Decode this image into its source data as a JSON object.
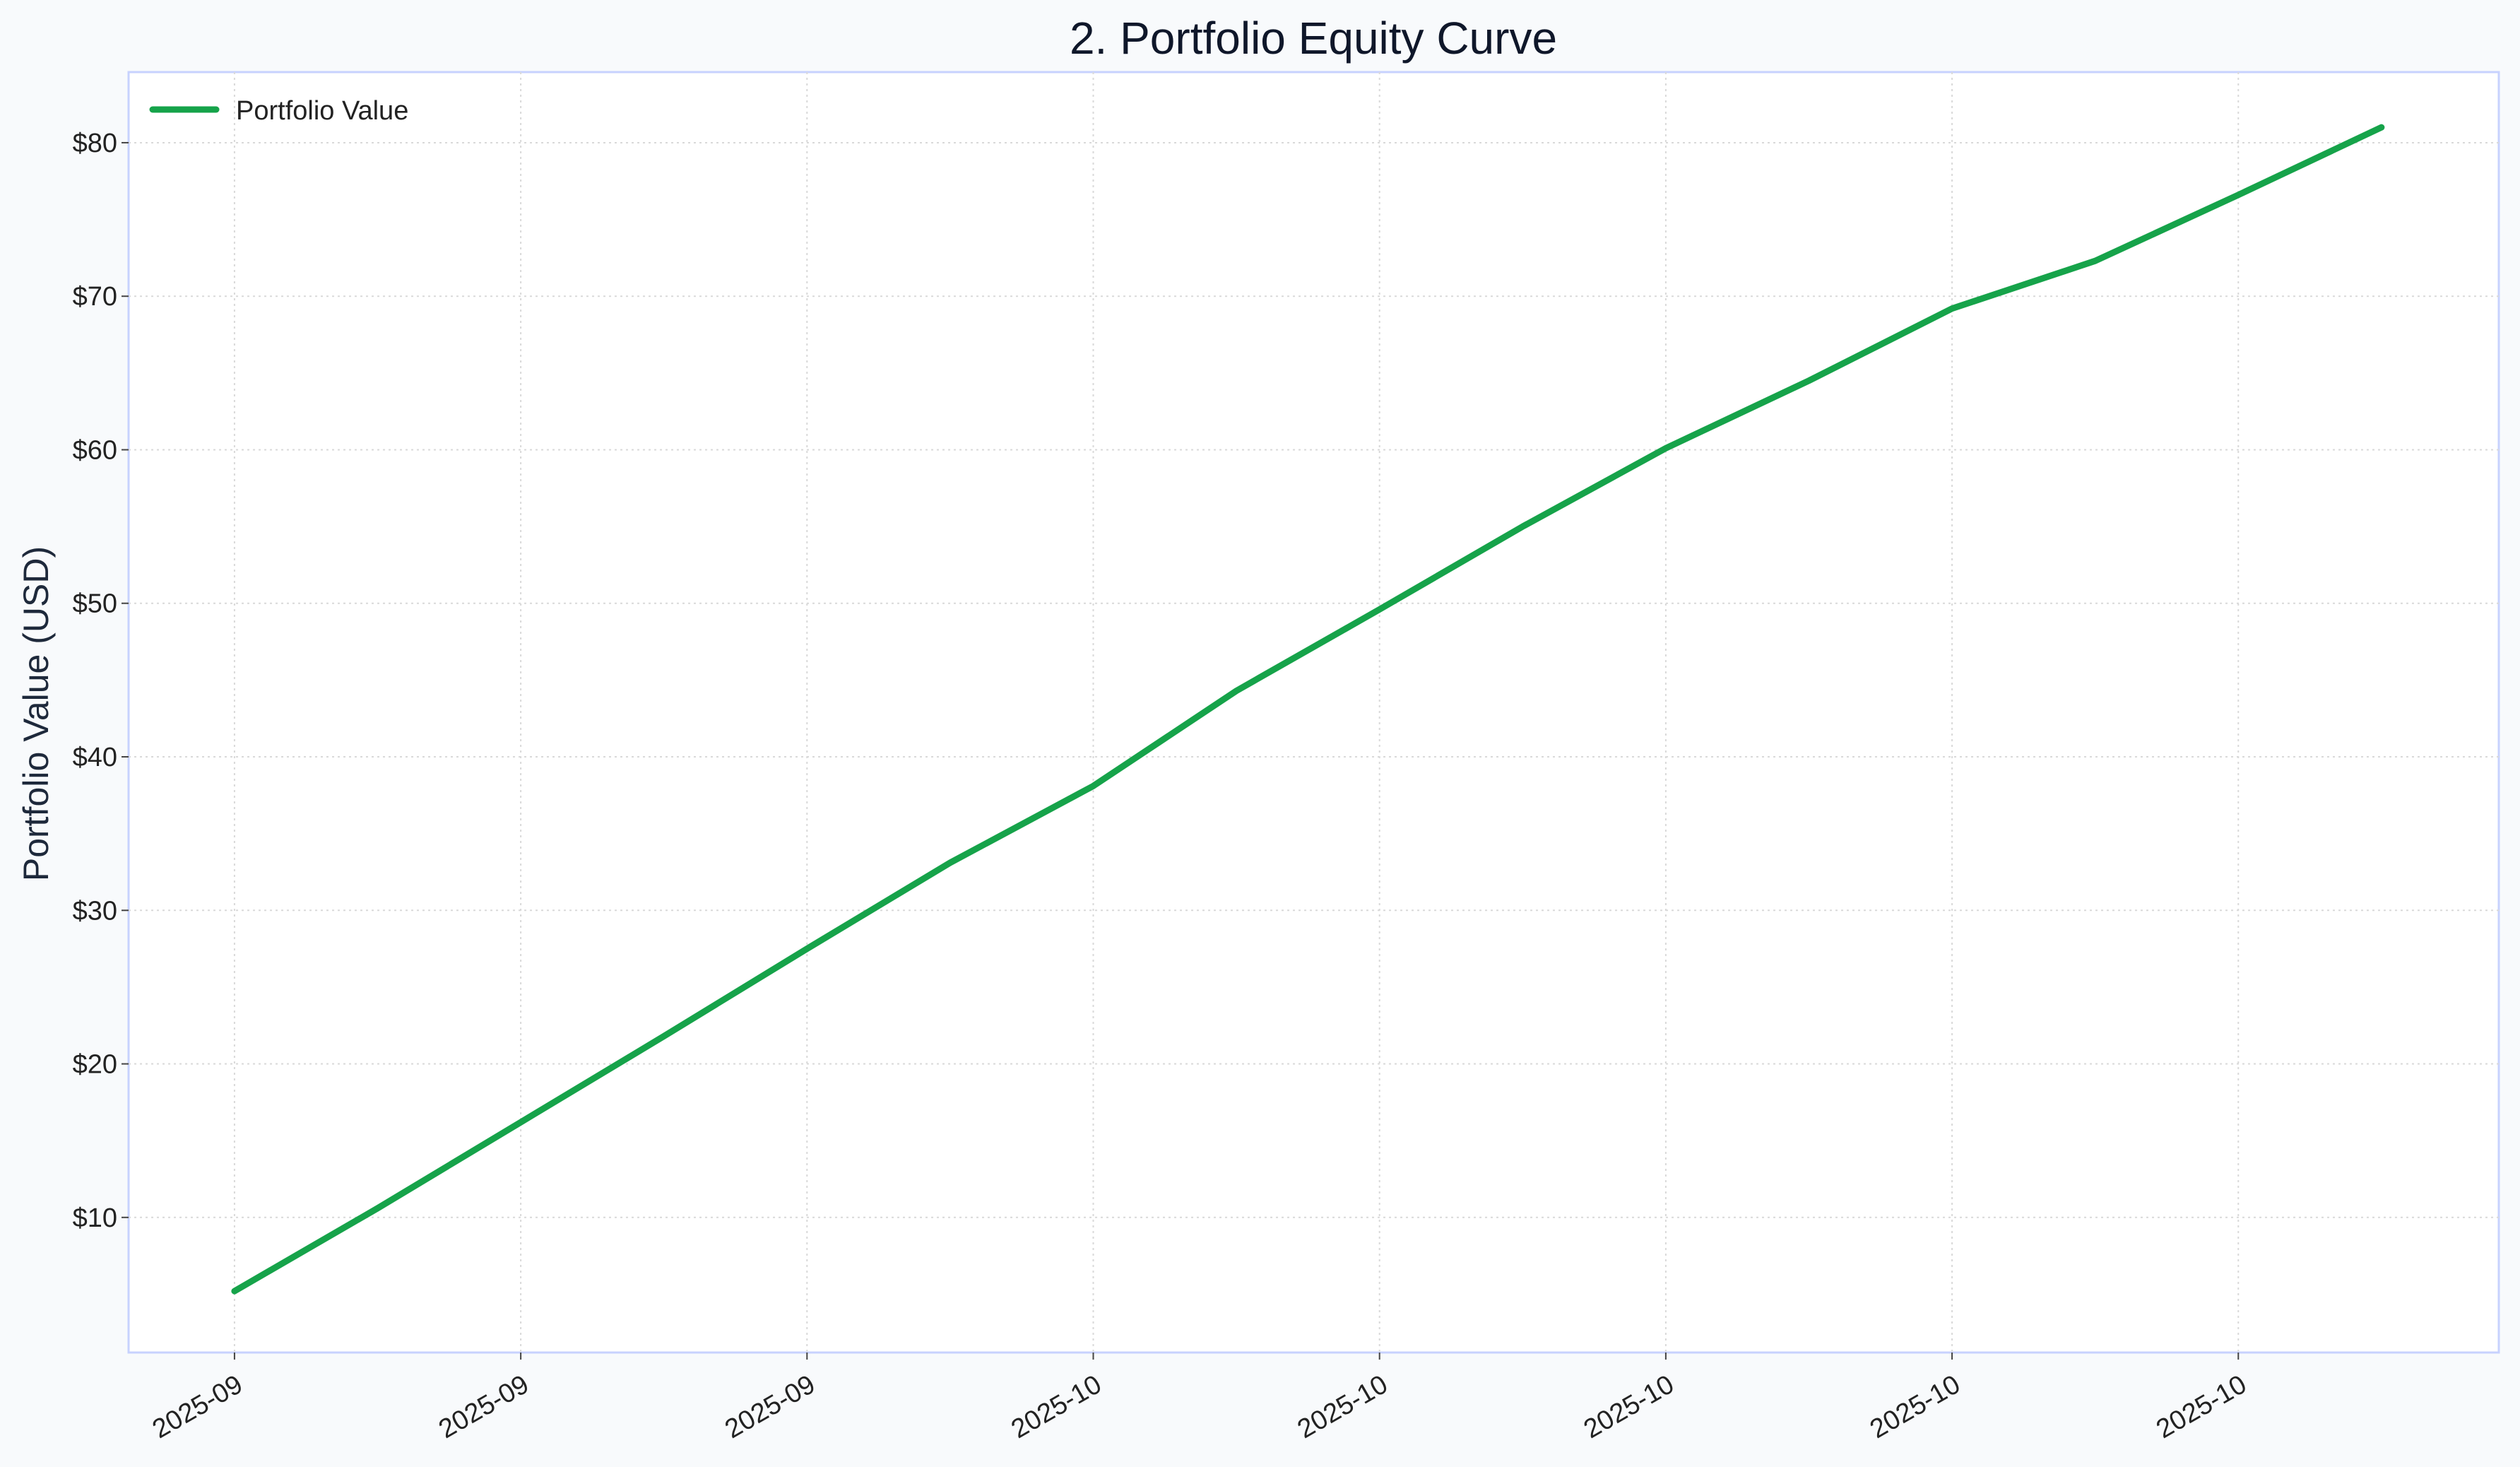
{
  "chart_data": {
    "type": "line",
    "title": "2. Portfolio Equity Curve",
    "xlabel": "",
    "ylabel": "Portfolio Value (USD)",
    "x_tick_labels": [
      "2025-09",
      "2025-09",
      "2025-09",
      "2025-10",
      "2025-10",
      "2025-10",
      "2025-10",
      "2025-10"
    ],
    "y_tick_labels": [
      "$10",
      "$20",
      "$30",
      "$40",
      "$50",
      "$60",
      "$70",
      "$80"
    ],
    "y_ticks": [
      10,
      20,
      30,
      40,
      50,
      60,
      70,
      80
    ],
    "ylim": [
      1.2,
      84.6
    ],
    "xlim": [
      -0.37,
      7.91
    ],
    "grid": true,
    "legend": {
      "placement": "top-left",
      "entries": [
        "Portfolio Value"
      ]
    },
    "colors": {
      "series": "#16a34a",
      "grid": "#d9d9d9",
      "frame": "#c7d2fe",
      "background": "#f8fafc",
      "plot_background": "#ffffff"
    },
    "series": [
      {
        "name": "Portfolio Value",
        "x": [
          0,
          0.5,
          1,
          1.5,
          2,
          2.5,
          3,
          3.5,
          4,
          4.5,
          5,
          5.5,
          6,
          6.5,
          7,
          7.5
        ],
        "values": [
          5.2,
          10.6,
          16.2,
          21.8,
          27.5,
          33.1,
          38.1,
          44.3,
          49.6,
          55.0,
          60.1,
          64.5,
          69.2,
          72.3,
          76.6,
          81.0
        ]
      }
    ]
  }
}
